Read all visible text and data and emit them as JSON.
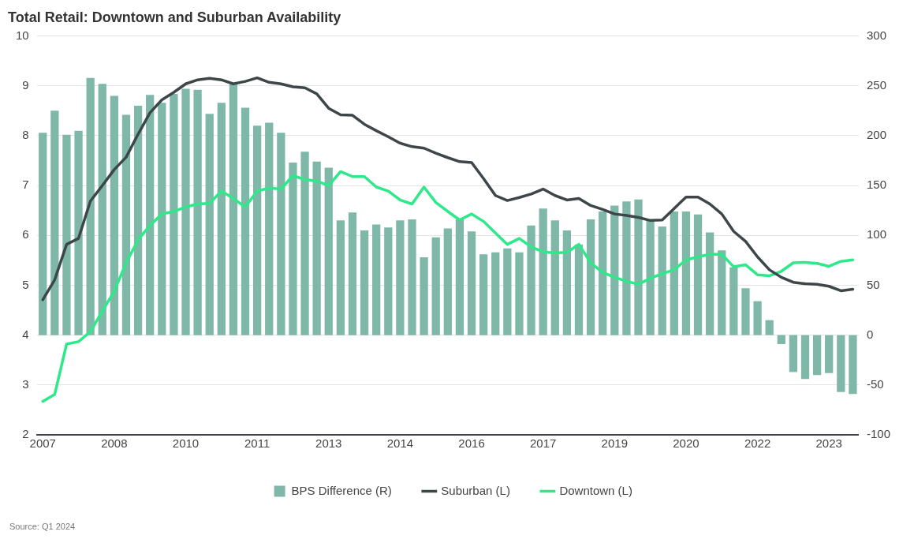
{
  "chart_data": {
    "type": "bar",
    "title": "Total Retail: Downtown and Suburban Availability",
    "categories": [
      "2007",
      null,
      null,
      null,
      null,
      null,
      "2008",
      null,
      null,
      null,
      null,
      null,
      "2010",
      null,
      null,
      null,
      null,
      null,
      "2011",
      null,
      null,
      null,
      null,
      null,
      "2013",
      null,
      null,
      null,
      null,
      null,
      "2014",
      null,
      null,
      null,
      null,
      null,
      "2016",
      null,
      null,
      null,
      null,
      null,
      "2017",
      null,
      null,
      null,
      null,
      null,
      "2019",
      null,
      null,
      null,
      null,
      null,
      "2020",
      null,
      null,
      null,
      null,
      null,
      "2022",
      null,
      null,
      null,
      null,
      null,
      "2023",
      null,
      null
    ],
    "series": [
      {
        "name": "BPS Difference (R)",
        "axis": "y2",
        "color": "#7fb8a8",
        "values": [
          203,
          225,
          201,
          205,
          258,
          252,
          240,
          221,
          230,
          241,
          233,
          242,
          247,
          246,
          222,
          233,
          253,
          228,
          210,
          213,
          203,
          173,
          184,
          174,
          168,
          115,
          123,
          105,
          111,
          108,
          115,
          116,
          78,
          98,
          107,
          116,
          104,
          81,
          83,
          87,
          83,
          110,
          127,
          115,
          105,
          91,
          116,
          124,
          130,
          134,
          136,
          116,
          109,
          124,
          124,
          121,
          103,
          85,
          68,
          47,
          34,
          15,
          -9,
          -37,
          -44,
          -40,
          -38,
          -57,
          -59
        ]
      },
      {
        "name": "Suburban (L)",
        "type": "line",
        "axis": "y",
        "color": "#3d4649",
        "values": [
          4.71,
          5.11,
          5.82,
          5.94,
          6.69,
          7.0,
          7.32,
          7.57,
          8.03,
          8.46,
          8.72,
          8.87,
          9.04,
          9.12,
          9.15,
          9.12,
          9.04,
          9.09,
          9.16,
          9.07,
          9.04,
          8.98,
          8.96,
          8.84,
          8.55,
          8.42,
          8.41,
          8.23,
          8.1,
          7.98,
          7.85,
          7.78,
          7.75,
          7.65,
          7.56,
          7.48,
          7.46,
          7.14,
          6.8,
          6.7,
          6.76,
          6.83,
          6.93,
          6.8,
          6.71,
          6.74,
          6.6,
          6.52,
          6.43,
          6.4,
          6.36,
          6.3,
          6.31,
          6.54,
          6.77,
          6.77,
          6.63,
          6.43,
          6.08,
          5.88,
          5.57,
          5.31,
          5.16,
          5.06,
          5.03,
          5.02,
          4.98,
          4.89,
          4.92
        ]
      },
      {
        "name": "Downtown (L)",
        "type": "line",
        "axis": "y",
        "color": "#2ee88a",
        "values": [
          2.67,
          2.81,
          3.82,
          3.87,
          4.07,
          4.48,
          4.88,
          5.45,
          5.91,
          6.2,
          6.43,
          6.48,
          6.57,
          6.63,
          6.64,
          6.89,
          6.74,
          6.57,
          6.89,
          6.95,
          6.93,
          7.2,
          7.12,
          7.09,
          7.0,
          7.28,
          7.18,
          7.18,
          6.97,
          6.89,
          6.71,
          6.63,
          6.97,
          6.66,
          6.48,
          6.31,
          6.43,
          6.28,
          6.05,
          5.82,
          5.94,
          5.77,
          5.67,
          5.65,
          5.66,
          5.82,
          5.45,
          5.26,
          5.16,
          5.08,
          5.02,
          5.14,
          5.23,
          5.31,
          5.51,
          5.57,
          5.62,
          5.62,
          5.37,
          5.41,
          5.21,
          5.19,
          5.28,
          5.45,
          5.46,
          5.44,
          5.38,
          5.48,
          5.51
        ]
      }
    ],
    "ylim": [
      2,
      10
    ],
    "yticks": [
      2,
      3,
      4,
      5,
      6,
      7,
      8,
      9,
      10
    ],
    "y2lim": [
      -100,
      300
    ],
    "y2ticks": [
      -100,
      -50,
      0,
      50,
      100,
      150,
      200,
      250,
      300
    ],
    "grid": "y",
    "legend": "bottom",
    "marker": "none",
    "annotations": [
      "Source: Q1 2024"
    ]
  }
}
